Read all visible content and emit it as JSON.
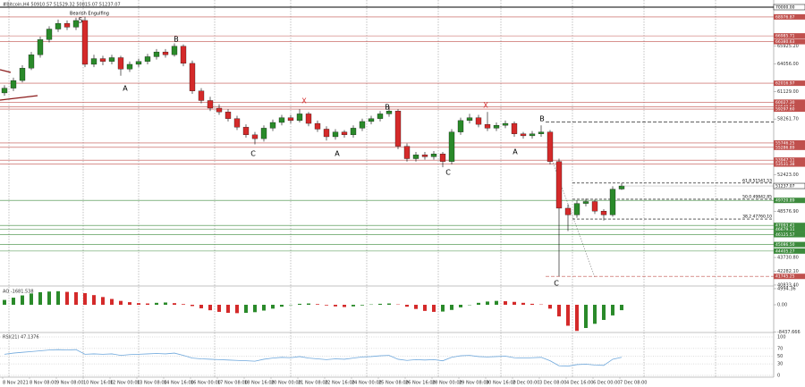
{
  "chart_data": {
    "type": "candlestick",
    "title": "#Bitcoin,H4  50910.57 51529.32 50815.07 51237.07",
    "time_labels": [
      "8 Nov 2021",
      "8 Nov 08:00",
      "9 Nov 08:00",
      "10 Nov 16:00",
      "12 Nov 00:00",
      "13 Nov 08:00",
      "14 Nov 16:00",
      "16 Nov 00:00",
      "17 Nov 08:00",
      "18 Nov 16:00",
      "20 Nov 00:00",
      "21 Nov 08:00",
      "22 Nov 16:00",
      "24 Nov 00:00",
      "25 Nov 08:00",
      "26 Nov 16:00",
      "28 Nov 00:00",
      "29 Nov 08:00",
      "30 Nov 16:00",
      "2 Dec 00:00",
      "3 Dec 08:00",
      "4 Dec 16:00",
      "6 Dec 00:00",
      "7 Dec 08:00"
    ],
    "candles": [
      [
        61000,
        61800,
        60700,
        61500
      ],
      [
        61500,
        62600,
        61200,
        62300
      ],
      [
        62300,
        63900,
        62100,
        63600
      ],
      [
        63600,
        65300,
        63400,
        65000
      ],
      [
        65000,
        66900,
        64700,
        66600
      ],
      [
        66600,
        68000,
        66300,
        67700
      ],
      [
        67700,
        68700,
        67400,
        68300
      ],
      [
        68300,
        68600,
        67600,
        67900
      ],
      [
        67900,
        68900,
        67600,
        68600
      ],
      [
        68600,
        69000,
        63700,
        64000
      ],
      [
        64000,
        65000,
        63700,
        64600
      ],
      [
        64600,
        64900,
        63900,
        64300
      ],
      [
        64300,
        65000,
        64000,
        64700
      ],
      [
        64700,
        64900,
        62800,
        63500
      ],
      [
        63500,
        64300,
        63200,
        64000
      ],
      [
        64000,
        64600,
        63700,
        64300
      ],
      [
        64300,
        65100,
        64000,
        64800
      ],
      [
        64800,
        65600,
        64500,
        65300
      ],
      [
        65300,
        65600,
        64700,
        65000
      ],
      [
        65000,
        66200,
        64800,
        65900
      ],
      [
        65900,
        66100,
        63800,
        64100
      ],
      [
        64100,
        64400,
        60900,
        61200
      ],
      [
        61200,
        61500,
        59900,
        60200
      ],
      [
        60200,
        60600,
        59100,
        59400
      ],
      [
        59400,
        59800,
        58700,
        59000
      ],
      [
        59000,
        59300,
        58000,
        58300
      ],
      [
        58300,
        58600,
        57100,
        57400
      ],
      [
        57400,
        57700,
        56300,
        56600
      ],
      [
        56600,
        56900,
        55600,
        56200
      ],
      [
        56200,
        57600,
        55900,
        57300
      ],
      [
        57300,
        58200,
        57000,
        57900
      ],
      [
        57900,
        58700,
        57600,
        58400
      ],
      [
        58400,
        58700,
        57800,
        58100
      ],
      [
        58100,
        59300,
        57900,
        58800
      ],
      [
        58800,
        59000,
        57500,
        57800
      ],
      [
        57800,
        58100,
        56900,
        57200
      ],
      [
        57200,
        57500,
        56000,
        56400
      ],
      [
        56400,
        57200,
        56100,
        56900
      ],
      [
        56900,
        57100,
        56300,
        56600
      ],
      [
        56600,
        57600,
        56300,
        57300
      ],
      [
        57300,
        58300,
        57000,
        58000
      ],
      [
        58000,
        58600,
        57700,
        58300
      ],
      [
        58300,
        59100,
        58000,
        58800
      ],
      [
        58800,
        59600,
        58500,
        59100
      ],
      [
        59100,
        59300,
        55100,
        55400
      ],
      [
        55400,
        55700,
        53800,
        54100
      ],
      [
        54100,
        54800,
        53800,
        54500
      ],
      [
        54500,
        54800,
        54000,
        54300
      ],
      [
        54300,
        54900,
        54000,
        54600
      ],
      [
        54600,
        54800,
        53200,
        53800
      ],
      [
        53800,
        57200,
        53500,
        56900
      ],
      [
        56900,
        58400,
        56600,
        58100
      ],
      [
        58100,
        58800,
        57800,
        58400
      ],
      [
        58400,
        58700,
        57400,
        57700
      ],
      [
        57700,
        59000,
        57000,
        57300
      ],
      [
        57300,
        57900,
        57000,
        57600
      ],
      [
        57600,
        58100,
        57300,
        57800
      ],
      [
        57800,
        58000,
        56400,
        56700
      ],
      [
        56700,
        56900,
        56200,
        56500
      ],
      [
        56500,
        57000,
        56200,
        56700
      ],
      [
        56700,
        57600,
        56400,
        56900
      ],
      [
        56900,
        57100,
        53500,
        53800
      ],
      [
        53800,
        54100,
        41745,
        48900
      ],
      [
        48900,
        49300,
        46500,
        48200
      ],
      [
        48200,
        49700,
        47900,
        49400
      ],
      [
        49400,
        49900,
        49100,
        49600
      ],
      [
        49600,
        49800,
        48300,
        48600
      ],
      [
        48600,
        48800,
        47600,
        48200
      ],
      [
        48200,
        51200,
        48000,
        50900
      ],
      [
        50910.57,
        51529.32,
        50815.07,
        51237.07
      ]
    ],
    "colors": {
      "up": "#2a8a2a",
      "down": "#d42a2a",
      "wick": "#000000"
    },
    "ylim": [
      40735,
      70750
    ],
    "yticks": [
      {
        "value": 40833.4,
        "label": "40833.40"
      },
      {
        "value": 42282.1,
        "label": "42282.10"
      },
      {
        "value": 43730.8,
        "label": "43730.80"
      },
      {
        "value": 48576.9,
        "label": "48576.90"
      },
      {
        "value": 52423,
        "label": "52423.00"
      },
      {
        "value": 58261.7,
        "label": "58261.70"
      },
      {
        "value": 61129,
        "label": "61129.00"
      },
      {
        "value": 64056,
        "label": "64056.00"
      },
      {
        "value": 65925.2,
        "label": "65925.20"
      }
    ],
    "levels": [
      {
        "value": 70000,
        "label": "70000.00",
        "color": "#000000",
        "style": "solid"
      },
      {
        "value": 68976.87,
        "label": "68976.87",
        "color": "#c0504d",
        "style": "solid"
      },
      {
        "value": 66985.71,
        "label": "66985.71",
        "color": "#c0504d",
        "style": "solid"
      },
      {
        "value": 66380.63,
        "label": "66380.63",
        "color": "#c0504d",
        "style": "solid"
      },
      {
        "value": 62016.97,
        "label": "62016.97",
        "color": "#c0504d",
        "style": "solid"
      },
      {
        "value": 60027.3,
        "label": "60027.30",
        "color": "#c0504d",
        "style": "solid"
      },
      {
        "value": 59549.54,
        "label": "59549.54",
        "color": "#c0504d",
        "style": "solid"
      },
      {
        "value": 59297.6,
        "label": "59297.60",
        "color": "#c0504d",
        "style": "solid"
      },
      {
        "value": 57927,
        "color": "#000000",
        "style": "dashed"
      },
      {
        "value": 55746.25,
        "label": "55746.25",
        "color": "#c0504d",
        "style": "solid"
      },
      {
        "value": 55286.89,
        "label": "55286.89",
        "color": "#c0504d",
        "style": "solid"
      },
      {
        "value": 53947.11,
        "label": "53947.11",
        "color": "#c0504d",
        "style": "solid"
      },
      {
        "value": 53531.38,
        "label": "53531.38",
        "color": "#c0504d",
        "style": "solid"
      },
      {
        "value": 51541.53,
        "label": "61.8 51541.53",
        "color": "#000000",
        "style": "fib"
      },
      {
        "value": 49842.85,
        "label": "50.0 49842.85",
        "color": "#000000",
        "style": "fib"
      },
      {
        "value": 49720.89,
        "label": "49720.89",
        "color": "#3d8b3d",
        "style": "solid"
      },
      {
        "value": 47760.1,
        "label": "38.2 47760.10",
        "color": "#000000",
        "style": "fib"
      },
      {
        "value": 47093.41,
        "label": "47093.41",
        "color": "#3d8b3d",
        "style": "solid"
      },
      {
        "value": 46679.11,
        "label": "46679.11",
        "color": "#3d8b3d",
        "style": "solid"
      },
      {
        "value": 46125.57,
        "label": "46125.57",
        "color": "#3d8b3d",
        "style": "solid"
      },
      {
        "value": 45086.5,
        "label": "45086.50",
        "color": "#3d8b3d",
        "style": "solid"
      },
      {
        "value": 44405.27,
        "label": "44405.27",
        "color": "#3d8b3d",
        "style": "solid"
      },
      {
        "value": 41745.25,
        "label": "41745.25",
        "color": "#c0504d",
        "style": "dashed"
      }
    ],
    "annotations": [
      {
        "text": "Bearish Engulfing",
        "color": "#000000"
      },
      {
        "text": "5",
        "color": "#000000"
      },
      {
        "text": "A",
        "color": "#000000"
      },
      {
        "text": "B",
        "color": "#000000"
      },
      {
        "text": "C",
        "color": "#000000"
      },
      {
        "text": "X",
        "color": "#d42a2a"
      },
      {
        "text": "A",
        "color": "#000000"
      },
      {
        "text": "B",
        "color": "#000000"
      },
      {
        "text": "C",
        "color": "#000000"
      },
      {
        "text": "X",
        "color": "#d42a2a"
      },
      {
        "text": "A",
        "color": "#000000"
      },
      {
        "text": "B",
        "color": "#000000"
      },
      {
        "text": "C",
        "color": "#000000"
      }
    ],
    "ao": {
      "title": "AO -1681.538",
      "values": [
        1500,
        2200,
        2900,
        3500,
        3900,
        4100,
        4200,
        4000,
        3900,
        3600,
        3000,
        2400,
        1800,
        1200,
        800,
        500,
        400,
        600,
        700,
        500,
        200,
        -400,
        -1100,
        -1700,
        -2200,
        -2500,
        -2600,
        -2500,
        -2300,
        -1800,
        -1200,
        -600,
        -100,
        300,
        400,
        200,
        -200,
        -500,
        -700,
        -500,
        -200,
        100,
        300,
        400,
        100,
        -600,
        -1300,
        -1900,
        -2200,
        -2100,
        -1600,
        -800,
        0,
        600,
        1000,
        1200,
        1100,
        900,
        600,
        300,
        100,
        -1200,
        -3600,
        -6500,
        -8100,
        -7200,
        -5900,
        -4700,
        -3300,
        -1681.538
      ],
      "ylim": [
        -8590,
        5540
      ],
      "yticks": [
        {
          "value": 4994.36,
          "label": "4994.36"
        },
        {
          "value": 0,
          "label": "0.00"
        },
        -8437.666
      ],
      "up_color": "#2a8a2a",
      "down_color": "#d42a2a"
    },
    "rsi": {
      "title": "RSI(21) 47.1376",
      "values": [
        55,
        58,
        60,
        62,
        64,
        66,
        67,
        66,
        67,
        55,
        56,
        55,
        56,
        52,
        54,
        55,
        56,
        57,
        56,
        58,
        52,
        45,
        43,
        42,
        41,
        40,
        39,
        38,
        37,
        42,
        45,
        47,
        46,
        49,
        45,
        43,
        41,
        43,
        42,
        45,
        48,
        49,
        51,
        52,
        42,
        39,
        41,
        40,
        41,
        38,
        47,
        51,
        52,
        49,
        48,
        49,
        50,
        46,
        45,
        46,
        47,
        38,
        25,
        24,
        28,
        29,
        27,
        26,
        42,
        47.1376
      ],
      "ylim": [
        0,
        100
      ],
      "yticks": [
        100,
        70,
        50,
        30,
        0
      ],
      "grid": true,
      "color": "#6fa8dc"
    }
  }
}
